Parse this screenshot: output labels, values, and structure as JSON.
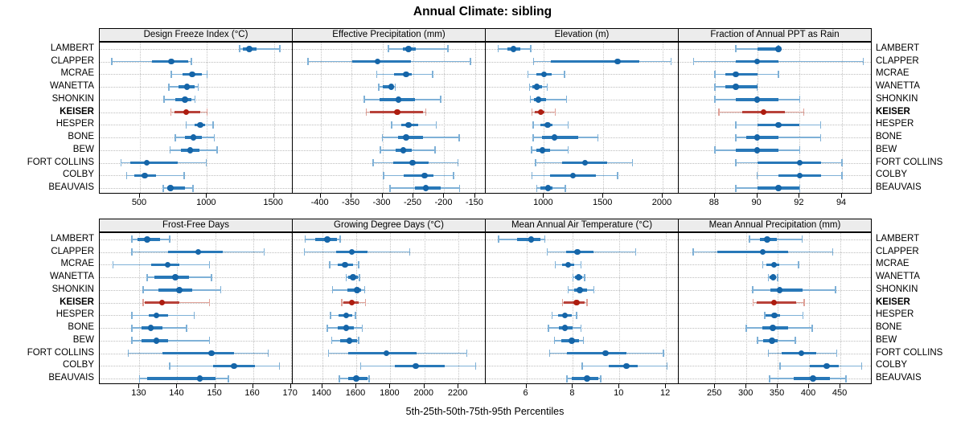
{
  "title": "Annual Climate: sibling",
  "caption": "5th-25th-50th-75th-95th Percentiles",
  "stations": [
    "LAMBERT",
    "CLAPPER",
    "MCRAE",
    "WANETTA",
    "SHONKIN",
    "KEISER",
    "HESPER",
    "BONE",
    "BEW",
    "FORT COLLINS",
    "COLBY",
    "BEAUVAIS"
  ],
  "highlight_station": "KEISER",
  "percentile_levels": [
    5,
    25,
    50,
    75,
    95
  ],
  "colors": {
    "blue_dot": "#1565a8",
    "blue_band": "#2878b8",
    "blue_whisker": "#7fb1d7",
    "red_dot": "#ad1d10",
    "red_band": "#b8423a",
    "red_whisker": "#dfa198",
    "strip_bg": "#ececec",
    "grid": "#bdbdbd",
    "border": "#000000"
  },
  "chart_data": {
    "type": "dotplot-percentiles",
    "note": "Each row shows 5th-25th-50th-75th-95th percentiles; thin whisker = 5th-95th, thick band = 25th-75th, dot = median",
    "rows": [
      "LAMBERT",
      "CLAPPER",
      "MCRAE",
      "WANETTA",
      "SHONKIN",
      "KEISER",
      "HESPER",
      "BONE",
      "BEW",
      "FORT COLLINS",
      "COLBY",
      "BEAUVAIS"
    ],
    "panels": [
      {
        "title": "Design Freeze Index (°C)",
        "grid_row": 0,
        "xlim": [
          200,
          1640
        ],
        "ticks": [
          500,
          1000,
          1500
        ],
        "values": [
          [
            1245,
            1265,
            1315,
            1370,
            1545
          ],
          [
            290,
            590,
            735,
            860,
            885
          ],
          [
            735,
            820,
            890,
            960,
            1000
          ],
          [
            715,
            785,
            850,
            905,
            935
          ],
          [
            680,
            765,
            835,
            885,
            910
          ],
          [
            730,
            760,
            845,
            950,
            1000
          ],
          [
            845,
            905,
            950,
            985,
            1045
          ],
          [
            765,
            835,
            900,
            965,
            1055
          ],
          [
            725,
            805,
            875,
            945,
            1075
          ],
          [
            360,
            430,
            550,
            785,
            995
          ],
          [
            400,
            460,
            535,
            620,
            830
          ],
          [
            675,
            705,
            727,
            835,
            895
          ]
        ]
      },
      {
        "title": "Effective Precipitation (mm)",
        "grid_row": 0,
        "xlim": [
          -445,
          -133
        ],
        "ticks": [
          -400,
          -350,
          -300,
          -250,
          -200,
          -150
        ],
        "values": [
          [
            -290,
            -267,
            -258,
            -246,
            -194
          ],
          [
            -420,
            -349,
            -308,
            -254,
            -158
          ],
          [
            -309,
            -281,
            -262,
            -252,
            -219
          ],
          [
            -306,
            -300,
            -286,
            -283,
            -279
          ],
          [
            -329,
            -304,
            -274,
            -248,
            -206
          ],
          [
            -326,
            -320,
            -276,
            -235,
            -230
          ],
          [
            -285,
            -269,
            -258,
            -242,
            -213
          ],
          [
            -300,
            -275,
            -262,
            -234,
            -176
          ],
          [
            -303,
            -279,
            -266,
            -252,
            -215
          ],
          [
            -315,
            -283,
            -251,
            -225,
            -178
          ],
          [
            -298,
            -265,
            -232,
            -217,
            -185
          ],
          [
            -288,
            -248,
            -230,
            -206,
            -175
          ]
        ]
      },
      {
        "title": "Elevation (m)",
        "grid_row": 0,
        "xlim": [
          510,
          2135
        ],
        "ticks": [
          1000,
          1500,
          2000
        ],
        "values": [
          [
            615,
            695,
            745,
            800,
            890
          ],
          [
            913,
            1060,
            1620,
            1800,
            2070
          ],
          [
            867,
            936,
            1000,
            1062,
            1175
          ],
          [
            878,
            901,
            941,
            982,
            1027
          ],
          [
            885,
            913,
            952,
            1016,
            1192
          ],
          [
            901,
            925,
            975,
            1004,
            1096
          ],
          [
            908,
            970,
            1032,
            1073,
            1205
          ],
          [
            908,
            982,
            1089,
            1290,
            1456
          ],
          [
            895,
            936,
            986,
            1050,
            1203
          ],
          [
            929,
            1153,
            1347,
            1530,
            1747
          ],
          [
            901,
            1050,
            1244,
            1438,
            1621
          ],
          [
            941,
            970,
            1034,
            1073,
            1182
          ]
        ]
      },
      {
        "title": "Fraction of Annual PPT as Rain",
        "grid_row": 0,
        "xlim": [
          86.3,
          95.4
        ],
        "ticks": [
          88,
          90,
          92,
          94
        ],
        "values": [
          [
            89,
            90,
            91,
            91,
            91
          ],
          [
            87,
            89,
            90,
            91,
            95
          ],
          [
            88,
            88.5,
            89,
            90,
            91
          ],
          [
            88,
            88.5,
            89,
            90,
            90
          ],
          [
            88,
            89,
            90,
            91,
            92
          ],
          [
            88.2,
            89.3,
            90.3,
            91.3,
            92.2
          ],
          [
            89,
            90,
            91,
            92,
            93
          ],
          [
            89,
            89.5,
            90,
            91,
            93
          ],
          [
            88,
            89,
            90,
            91,
            92
          ],
          [
            89,
            90,
            92,
            93,
            94
          ],
          [
            90,
            91,
            92,
            93,
            94
          ],
          [
            89,
            90,
            91,
            92,
            92
          ]
        ]
      },
      {
        "title": "Frost-Free Days",
        "grid_row": 1,
        "xlim": [
          119.5,
          170.5
        ],
        "ticks": [
          130,
          140,
          150,
          160,
          170
        ],
        "values": [
          [
            128,
            129.5,
            132,
            135.5,
            138
          ],
          [
            128,
            137.5,
            145.5,
            152,
            163
          ],
          [
            123,
            133,
            137.5,
            140.5,
            148.5
          ],
          [
            132,
            134,
            139.5,
            143,
            149
          ],
          [
            131,
            135,
            140.5,
            144,
            151.5
          ],
          [
            131,
            131.5,
            136,
            140.5,
            148.5
          ],
          [
            128,
            132.5,
            134.5,
            137.5,
            144.5
          ],
          [
            128,
            130.5,
            133,
            136,
            142.5
          ],
          [
            128,
            130.5,
            134.5,
            137.5,
            148.5
          ],
          [
            127,
            136,
            149,
            155,
            164
          ],
          [
            138,
            149.5,
            155,
            160.5,
            167
          ],
          [
            130,
            132,
            146,
            150,
            153.5
          ]
        ]
      },
      {
        "title": "Growing Degree Days (°C)",
        "grid_row": 1,
        "xlim": [
          1227,
          2360
        ],
        "ticks": [
          1400,
          1600,
          1800,
          2000,
          2200
        ],
        "values": [
          [
            1300,
            1360,
            1430,
            1485,
            1505
          ],
          [
            1295,
            1480,
            1575,
            1665,
            1915
          ],
          [
            1445,
            1490,
            1535,
            1580,
            1615
          ],
          [
            1540,
            1555,
            1580,
            1610,
            1620
          ],
          [
            1460,
            1550,
            1605,
            1630,
            1650
          ],
          [
            1515,
            1525,
            1575,
            1615,
            1655
          ],
          [
            1450,
            1495,
            1540,
            1575,
            1595
          ],
          [
            1430,
            1490,
            1540,
            1585,
            1635
          ],
          [
            1455,
            1505,
            1560,
            1605,
            1615
          ],
          [
            1438,
            1553,
            1778,
            1954,
            2250
          ],
          [
            1625,
            1825,
            1950,
            2120,
            2300
          ],
          [
            1500,
            1555,
            1600,
            1665,
            1675
          ]
        ]
      },
      {
        "title": "Mean Annual Air Temperature (°C)",
        "grid_row": 1,
        "xlim": [
          4.25,
          12.55
        ],
        "ticks": [
          6,
          8,
          10,
          12
        ],
        "values": [
          [
            4.8,
            5.6,
            6.2,
            6.6,
            6.8
          ],
          [
            6.9,
            7.7,
            8.2,
            8.9,
            10.7
          ],
          [
            7.25,
            7.55,
            7.8,
            8.05,
            8.35
          ],
          [
            8.0,
            8.1,
            8.25,
            8.4,
            8.5
          ],
          [
            7.8,
            8.05,
            8.3,
            8.6,
            8.9
          ],
          [
            7.55,
            7.6,
            8.15,
            8.5,
            8.6
          ],
          [
            7.1,
            7.35,
            7.65,
            7.95,
            8.15
          ],
          [
            6.95,
            7.4,
            7.65,
            8.0,
            8.35
          ],
          [
            7.2,
            7.5,
            7.95,
            8.25,
            8.45
          ],
          [
            7.0,
            7.75,
            9.4,
            10.3,
            11.9
          ],
          [
            8.4,
            9.55,
            10.3,
            10.8,
            12.05
          ],
          [
            7.75,
            7.95,
            8.6,
            9.1,
            9.2
          ]
        ]
      },
      {
        "title": "Mean Annual Precipitation (mm)",
        "grid_row": 1,
        "xlim": [
          192,
          500
        ],
        "ticks": [
          250,
          300,
          350,
          400,
          450
        ],
        "values": [
          [
            305,
            321,
            333,
            349,
            389
          ],
          [
            215,
            253,
            326,
            367,
            438
          ],
          [
            326,
            332,
            344,
            352,
            383
          ],
          [
            335,
            337,
            343,
            347,
            350
          ],
          [
            310,
            338,
            353,
            389,
            442
          ],
          [
            311,
            316,
            344,
            380,
            392
          ],
          [
            329,
            331,
            345,
            354,
            390
          ],
          [
            300,
            325,
            342,
            367,
            405
          ],
          [
            318,
            327,
            341,
            350,
            378
          ],
          [
            335,
            356,
            388,
            412,
            444
          ],
          [
            354,
            401,
            428,
            448,
            484
          ],
          [
            337,
            375,
            406,
            433,
            459
          ]
        ]
      }
    ]
  }
}
